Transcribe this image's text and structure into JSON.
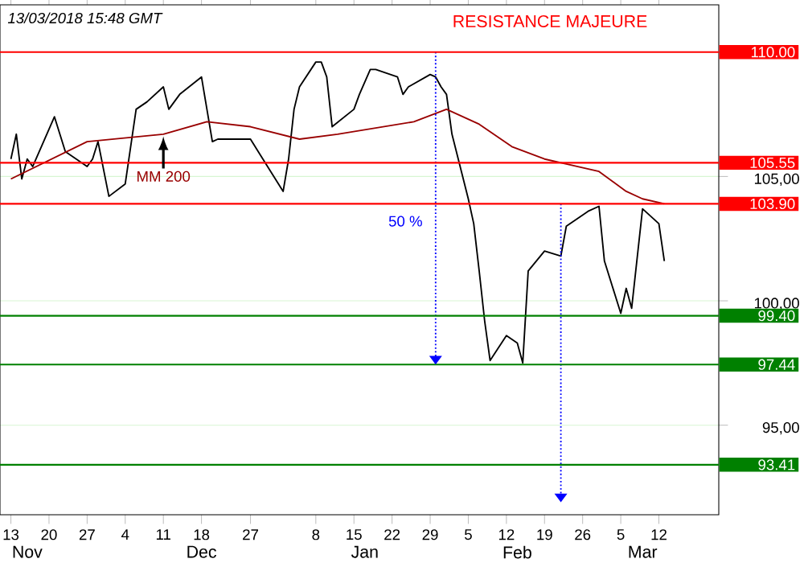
{
  "chart_data": {
    "type": "line",
    "title": "13/03/2018 15:48 GMT",
    "xlim": [
      "2017-11-11",
      "2018-03-23"
    ],
    "ylim": [
      91.4,
      111.9
    ],
    "xticks": [
      {
        "value": "2017-11-13",
        "label": "13"
      },
      {
        "value": "2017-11-20",
        "label": "20"
      },
      {
        "value": "2017-11-27",
        "label": "27"
      },
      {
        "value": "2017-12-04",
        "label": "4"
      },
      {
        "value": "2017-12-11",
        "label": "11"
      },
      {
        "value": "2017-12-18",
        "label": "18"
      },
      {
        "value": "2017-12-27",
        "label": "27"
      },
      {
        "value": "2018-01-08",
        "label": "8"
      },
      {
        "value": "2018-01-15",
        "label": "15"
      },
      {
        "value": "2018-01-22",
        "label": "22"
      },
      {
        "value": "2018-01-29",
        "label": "29"
      },
      {
        "value": "2018-02-05",
        "label": "5"
      },
      {
        "value": "2018-02-12",
        "label": "12"
      },
      {
        "value": "2018-02-19",
        "label": "19"
      },
      {
        "value": "2018-02-26",
        "label": "26"
      },
      {
        "value": "2018-03-05",
        "label": "5"
      },
      {
        "value": "2018-03-12",
        "label": "12"
      }
    ],
    "x2lim": [
      "2017-11-11",
      "2018-03-23"
    ],
    "x2ticks": [
      {
        "value": "2017-11-16",
        "label": "Nov"
      },
      {
        "value": "2017-12-18",
        "label": "Dec"
      },
      {
        "value": "2018-01-17",
        "label": "Jan"
      },
      {
        "value": "2018-02-14",
        "label": "Feb"
      },
      {
        "value": "2018-03-09",
        "label": "Mar"
      }
    ],
    "yticks": [
      {
        "value": 95,
        "label": "95,00"
      },
      {
        "value": 100,
        "label": "100,00"
      },
      {
        "value": 105,
        "label": "105,00"
      },
      {
        "value": 110,
        "label": null
      }
    ],
    "grid": "y",
    "series": [
      {
        "color": "#000000",
        "x": [
          "2017-11-13",
          "2017-11-14",
          "2017-11-15",
          "2017-11-16",
          "2017-11-17",
          "2017-11-21",
          "2017-11-23",
          "2017-11-27",
          "2017-11-28",
          "2017-11-29",
          "2017-12-01",
          "2017-12-04",
          "2017-12-06",
          "2017-12-08",
          "2017-12-11",
          "2017-12-12",
          "2017-12-14",
          "2017-12-18",
          "2017-12-19",
          "2017-12-20",
          "2017-12-21",
          "2017-12-27",
          "2017-12-29",
          "2018-01-02",
          "2018-01-03",
          "2018-01-04",
          "2018-01-05",
          "2018-01-08",
          "2018-01-09",
          "2018-01-10",
          "2018-01-11",
          "2018-01-15",
          "2018-01-16",
          "2018-01-18",
          "2018-01-19",
          "2018-01-23",
          "2018-01-24",
          "2018-01-25",
          "2018-01-29",
          "2018-01-30",
          "2018-01-31",
          "2018-02-01",
          "2018-02-02",
          "2018-02-05",
          "2018-02-06",
          "2018-02-07",
          "2018-02-08",
          "2018-02-09",
          "2018-02-12",
          "2018-02-14",
          "2018-02-15",
          "2018-02-16",
          "2018-02-19",
          "2018-02-22",
          "2018-02-23",
          "2018-02-27",
          "2018-03-01",
          "2018-03-02",
          "2018-03-05",
          "2018-03-06",
          "2018-03-07",
          "2018-03-08",
          "2018-03-09",
          "2018-03-12",
          "2018-03-13"
        ],
        "values": [
          105.7,
          106.7,
          104.9,
          105.7,
          105.4,
          107.4,
          106.0,
          105.4,
          105.7,
          106.4,
          104.2,
          104.7,
          107.7,
          108.0,
          108.6,
          107.7,
          108.3,
          109.0,
          107.7,
          106.4,
          106.5,
          106.5,
          105.8,
          104.4,
          105.7,
          107.7,
          108.6,
          109.6,
          109.6,
          109.0,
          107.0,
          107.7,
          108.3,
          109.3,
          109.3,
          109.0,
          108.3,
          108.6,
          109.1,
          109.0,
          108.6,
          108.3,
          106.7,
          104.1,
          103.1,
          101.2,
          99.2,
          97.6,
          98.6,
          98.3,
          97.5,
          101.2,
          102.0,
          101.8,
          103.0,
          103.6,
          103.8,
          101.6,
          99.5,
          100.5,
          99.7,
          101.7,
          103.7,
          103.1,
          101.6
        ]
      },
      {
        "name": "MM 200",
        "color": "#990000",
        "x": [
          "2017-11-13",
          "2017-11-27",
          "2017-12-11",
          "2017-12-19",
          "2017-12-27",
          "2018-01-05",
          "2018-01-12",
          "2018-01-26",
          "2018-02-01",
          "2018-02-07",
          "2018-02-13",
          "2018-02-19",
          "2018-02-23",
          "2018-03-01",
          "2018-03-06",
          "2018-03-09",
          "2018-03-13"
        ],
        "values": [
          104.9,
          106.4,
          106.7,
          107.2,
          107.0,
          106.5,
          106.7,
          107.2,
          107.7,
          107.1,
          106.2,
          105.7,
          105.5,
          105.2,
          104.4,
          104.1,
          103.9
        ]
      },
      {
        "color": "#0000ff",
        "line_style": "dotted",
        "x": [
          "2018-01-30",
          "2018-01-30"
        ],
        "values": [
          110,
          97.44
        ]
      },
      {
        "color": "#0000ff",
        "line_style": "dotted",
        "x": [
          "2018-02-22",
          "2018-02-22"
        ],
        "values": [
          103.9,
          91.9
        ]
      }
    ],
    "ref_lines": [
      {
        "axis": "y",
        "value": 110,
        "label": "110.00",
        "color": "#ff0000"
      },
      {
        "axis": "y",
        "value": 105.55,
        "label": "105.55",
        "color": "#ff0000"
      },
      {
        "axis": "y",
        "value": 103.9,
        "label": "103.90",
        "color": "#ff0000"
      },
      {
        "axis": "y",
        "value": 99.4,
        "label": "99.40",
        "color": "#008000"
      },
      {
        "axis": "y",
        "value": 97.44,
        "label": "97.44",
        "color": "#008000"
      },
      {
        "axis": "y",
        "value": 93.41,
        "label": "93.41",
        "color": "#008000"
      }
    ],
    "annotations": [
      {
        "text": "RESISTANCE MAJEURE",
        "x": "2018-02-20",
        "y": 110
      },
      {
        "text": "50 %",
        "x": "2018-01-29",
        "y": 103.2
      }
    ]
  }
}
